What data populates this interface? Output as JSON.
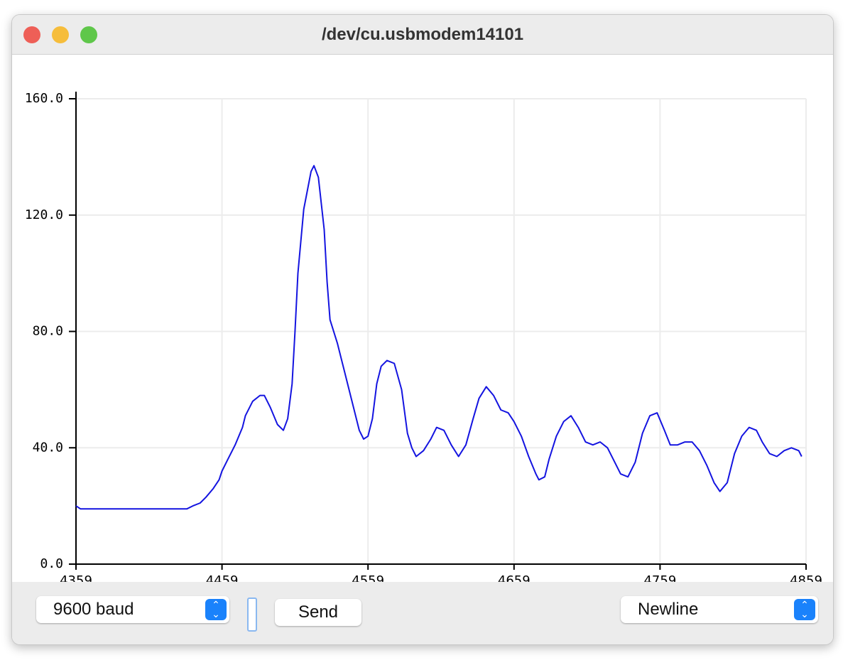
{
  "window": {
    "title": "/dev/cu.usbmodem14101"
  },
  "chart_data": {
    "type": "line",
    "x": [
      4359,
      4362,
      4400,
      4435,
      4439,
      4444,
      4448,
      4453,
      4457,
      4459,
      4463,
      4468,
      4473,
      4475,
      4480,
      4485,
      4488,
      4492,
      4497,
      4501,
      4504,
      4507,
      4509,
      4511,
      4515,
      4520,
      4522,
      4525,
      4529,
      4531,
      4533,
      4538,
      4543,
      4548,
      4553,
      4556,
      4559,
      4562,
      4565,
      4568,
      4572,
      4577,
      4582,
      4586,
      4589,
      4592,
      4597,
      4602,
      4606,
      4611,
      4616,
      4621,
      4626,
      4631,
      4635,
      4640,
      4645,
      4650,
      4655,
      4659,
      4664,
      4669,
      4674,
      4676,
      4680,
      4683,
      4688,
      4693,
      4698,
      4703,
      4708,
      4713,
      4718,
      4723,
      4727,
      4732,
      4737,
      4742,
      4747,
      4752,
      4757,
      4762,
      4766,
      4771,
      4776,
      4781,
      4786,
      4791,
      4796,
      4800,
      4805,
      4810,
      4815,
      4820,
      4825,
      4829,
      4834,
      4839,
      4844,
      4849,
      4854,
      4856
    ],
    "series": [
      {
        "color": "#1414e0",
        "values": [
          20,
          19,
          19,
          19,
          20,
          21,
          23,
          26,
          29,
          32,
          36,
          41,
          47,
          51,
          56,
          58,
          58,
          54,
          48,
          46,
          50,
          62,
          80,
          100,
          122,
          135,
          137,
          133,
          115,
          97,
          84,
          76,
          66,
          56,
          46,
          43,
          44,
          50,
          62,
          68,
          70,
          69,
          60,
          45,
          40,
          37,
          39,
          43,
          47,
          46,
          41,
          37,
          41,
          50,
          57,
          61,
          58,
          53,
          52,
          49,
          44,
          37,
          31,
          29,
          30,
          36,
          44,
          49,
          51,
          47,
          42,
          41,
          42,
          40,
          36,
          31,
          30,
          35,
          45,
          51,
          52,
          46,
          41,
          41,
          42,
          42,
          39,
          34,
          28,
          25,
          28,
          38,
          44,
          47,
          46,
          42,
          38,
          37,
          39,
          40,
          39,
          37
        ]
      }
    ],
    "xlim": [
      4359,
      4859
    ],
    "ylim": [
      0,
      160
    ],
    "xticks": [
      4359,
      4459,
      4559,
      4659,
      4759,
      4859
    ],
    "yticks": [
      {
        "value": 0,
        "label": "0.0"
      },
      {
        "value": 40,
        "label": "40.0"
      },
      {
        "value": 80,
        "label": "80.0"
      },
      {
        "value": 120,
        "label": "120.0"
      },
      {
        "value": 160,
        "label": "160.0"
      }
    ],
    "grid": true
  },
  "controls": {
    "baud": "9600 baud",
    "send": "Send",
    "line_ending": "Newline"
  }
}
